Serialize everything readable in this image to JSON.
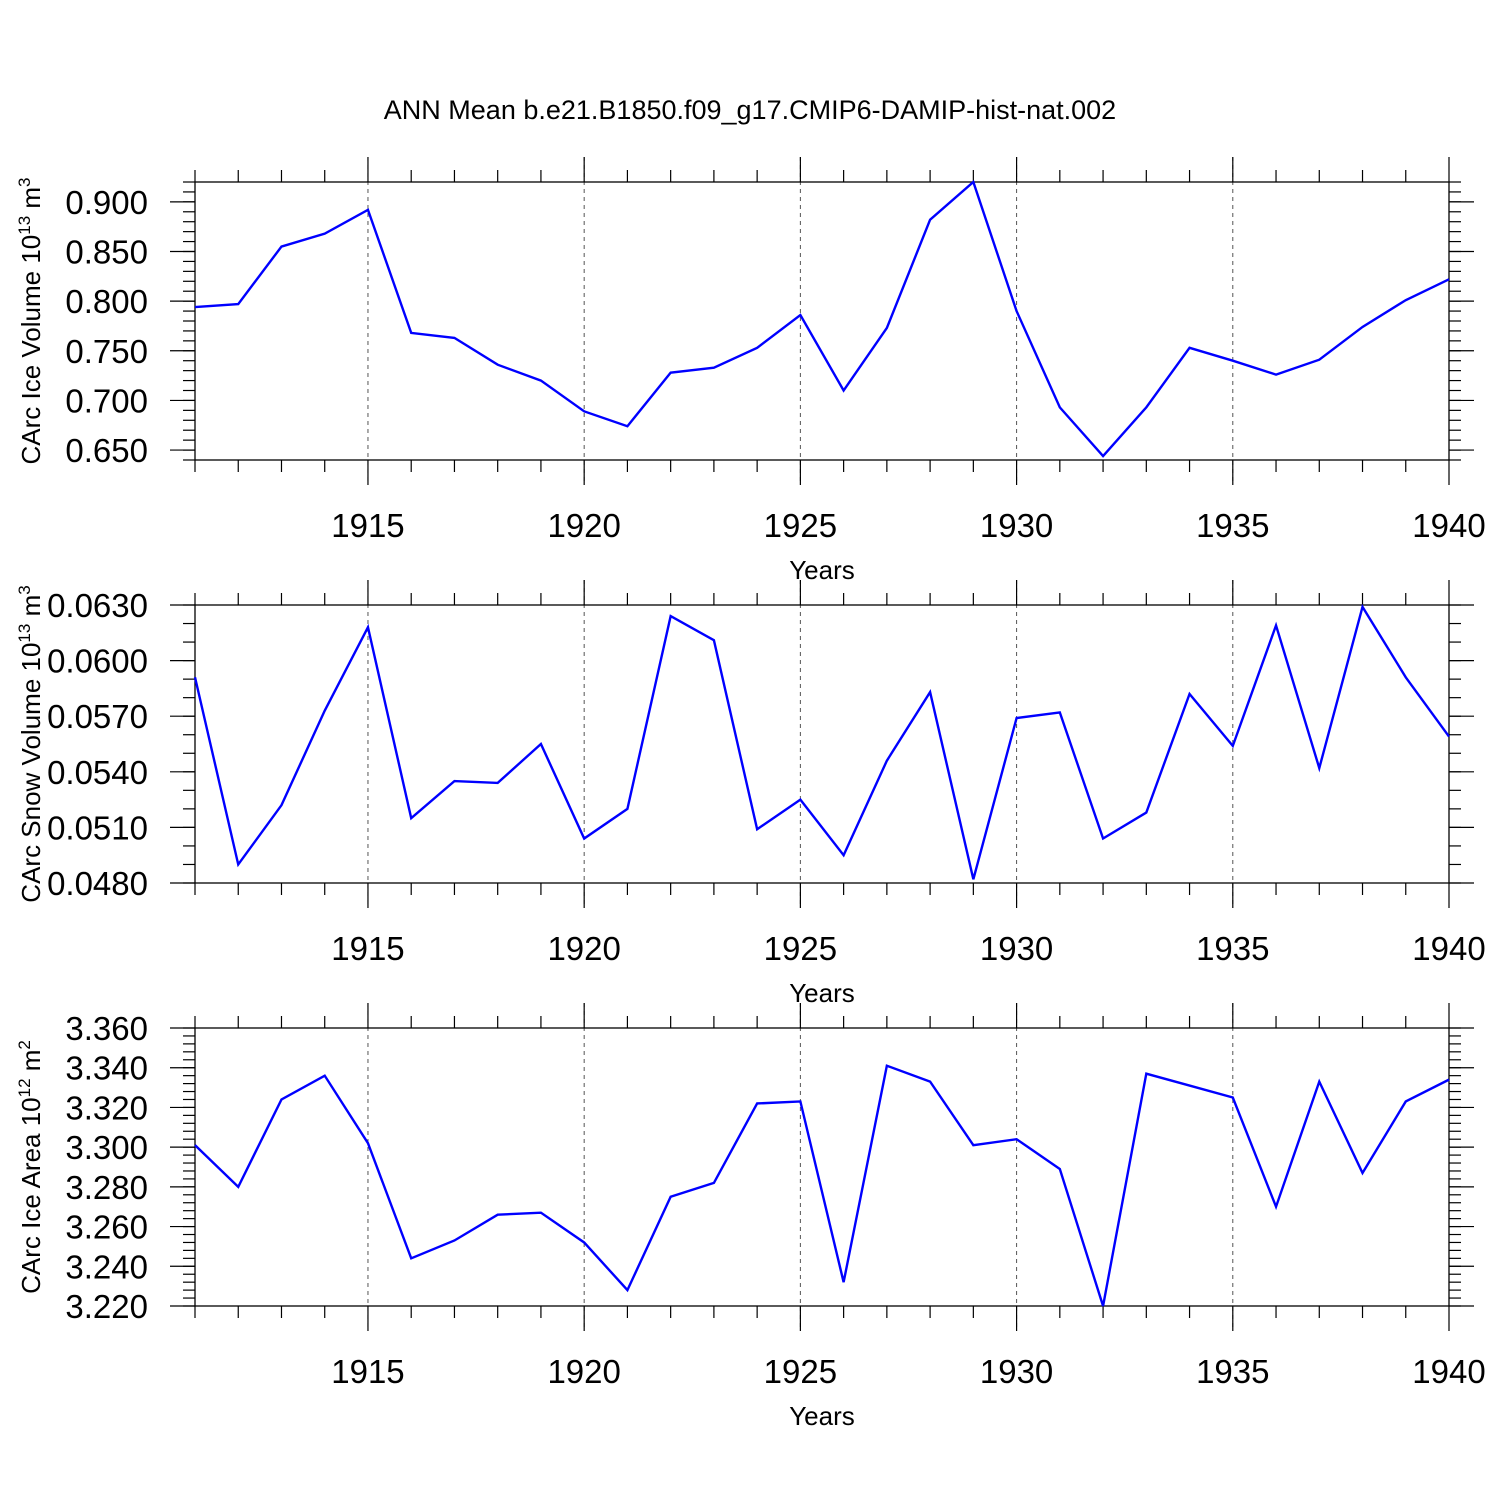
{
  "title": "ANN Mean b.e21.B1850.f09_g17.CMIP6-DAMIP-hist-nat.002",
  "colors": {
    "series": "#0000ff",
    "axes": "#000000",
    "background": "#ffffff"
  },
  "chart_data": [
    {
      "type": "line",
      "ylabel_main": "CArc Ice Volume 10",
      "ylabel_exp": "13",
      "ylabel_unit": "m",
      "ylabel_unit_exp": "3",
      "xlabel": "Years",
      "xlim": [
        1911,
        1940
      ],
      "ylim": [
        0.64,
        0.92
      ],
      "x_ticks": [
        1915,
        1920,
        1925,
        1930,
        1935,
        1940
      ],
      "x_tick_labels": [
        "1915",
        "1920",
        "1925",
        "1930",
        "1935",
        "1940"
      ],
      "y_ticks": [
        0.65,
        0.7,
        0.75,
        0.8,
        0.85,
        0.9
      ],
      "y_tick_labels": [
        "0.650",
        "0.700",
        "0.750",
        "0.800",
        "0.850",
        "0.900"
      ],
      "y_minor_step": 0.01,
      "grid": "vertical dashed at major x ticks",
      "series": [
        {
          "name": "CArc Ice Volume",
          "x": [
            1911,
            1912,
            1913,
            1914,
            1915,
            1916,
            1917,
            1918,
            1919,
            1920,
            1921,
            1922,
            1923,
            1924,
            1925,
            1926,
            1927,
            1928,
            1929,
            1930,
            1931,
            1932,
            1933,
            1934,
            1935,
            1936,
            1937,
            1938,
            1939,
            1940
          ],
          "values": [
            0.794,
            0.797,
            0.855,
            0.868,
            0.892,
            0.768,
            0.763,
            0.736,
            0.72,
            0.689,
            0.674,
            0.728,
            0.733,
            0.753,
            0.786,
            0.71,
            0.773,
            0.882,
            0.92,
            0.79,
            0.693,
            0.644,
            0.693,
            0.753,
            0.74,
            0.726,
            0.741,
            0.774,
            0.801,
            0.822
          ]
        }
      ]
    },
    {
      "type": "line",
      "ylabel_main": "CArc Snow Volume 10",
      "ylabel_exp": "13",
      "ylabel_unit": "m",
      "ylabel_unit_exp": "3",
      "xlabel": "Years",
      "xlim": [
        1911,
        1940
      ],
      "ylim": [
        0.048,
        0.063
      ],
      "x_ticks": [
        1915,
        1920,
        1925,
        1930,
        1935,
        1940
      ],
      "x_tick_labels": [
        "1915",
        "1920",
        "1925",
        "1930",
        "1935",
        "1940"
      ],
      "y_ticks": [
        0.048,
        0.051,
        0.054,
        0.057,
        0.06,
        0.063
      ],
      "y_tick_labels": [
        "0.0480",
        "0.0510",
        "0.0540",
        "0.0570",
        "0.0600",
        "0.0630"
      ],
      "y_minor_step": 0.001,
      "grid": "vertical dashed at major x ticks",
      "series": [
        {
          "name": "CArc Snow Volume",
          "x": [
            1911,
            1912,
            1913,
            1914,
            1915,
            1916,
            1917,
            1918,
            1919,
            1920,
            1921,
            1922,
            1923,
            1924,
            1925,
            1926,
            1927,
            1928,
            1929,
            1930,
            1931,
            1932,
            1933,
            1934,
            1935,
            1936,
            1937,
            1938,
            1939,
            1940
          ],
          "values": [
            0.0591,
            0.049,
            0.0522,
            0.0573,
            0.0618,
            0.0515,
            0.0535,
            0.0534,
            0.0555,
            0.0504,
            0.052,
            0.0624,
            0.0611,
            0.0509,
            0.0525,
            0.0495,
            0.0546,
            0.0583,
            0.0482,
            0.0569,
            0.0572,
            0.0504,
            0.0518,
            0.0582,
            0.0554,
            0.0619,
            0.0542,
            0.0629,
            0.0591,
            0.0559
          ]
        }
      ]
    },
    {
      "type": "line",
      "ylabel_main": "CArc Ice Area 10",
      "ylabel_exp": "12",
      "ylabel_unit": "m",
      "ylabel_unit_exp": "2",
      "xlabel": "Years",
      "xlim": [
        1911,
        1940
      ],
      "ylim": [
        3.22,
        3.36
      ],
      "x_ticks": [
        1915,
        1920,
        1925,
        1930,
        1935,
        1940
      ],
      "x_tick_labels": [
        "1915",
        "1920",
        "1925",
        "1930",
        "1935",
        "1940"
      ],
      "y_ticks": [
        3.22,
        3.24,
        3.26,
        3.28,
        3.3,
        3.32,
        3.34,
        3.36
      ],
      "y_tick_labels": [
        "3.220",
        "3.240",
        "3.260",
        "3.280",
        "3.300",
        "3.320",
        "3.340",
        "3.360"
      ],
      "y_minor_step": 0.004,
      "grid": "vertical dashed at major x ticks",
      "series": [
        {
          "name": "CArc Ice Area",
          "x": [
            1911,
            1912,
            1913,
            1914,
            1915,
            1916,
            1917,
            1918,
            1919,
            1920,
            1921,
            1922,
            1923,
            1924,
            1925,
            1926,
            1927,
            1928,
            1929,
            1930,
            1931,
            1932,
            1933,
            1934,
            1935,
            1936,
            1937,
            1938,
            1939,
            1940
          ],
          "values": [
            3.301,
            3.28,
            3.324,
            3.336,
            3.302,
            3.244,
            3.253,
            3.266,
            3.267,
            3.252,
            3.228,
            3.275,
            3.282,
            3.322,
            3.323,
            3.232,
            3.341,
            3.333,
            3.301,
            3.304,
            3.289,
            3.22,
            3.337,
            3.331,
            3.325,
            3.27,
            3.333,
            3.287,
            3.323,
            3.334
          ]
        }
      ]
    }
  ]
}
